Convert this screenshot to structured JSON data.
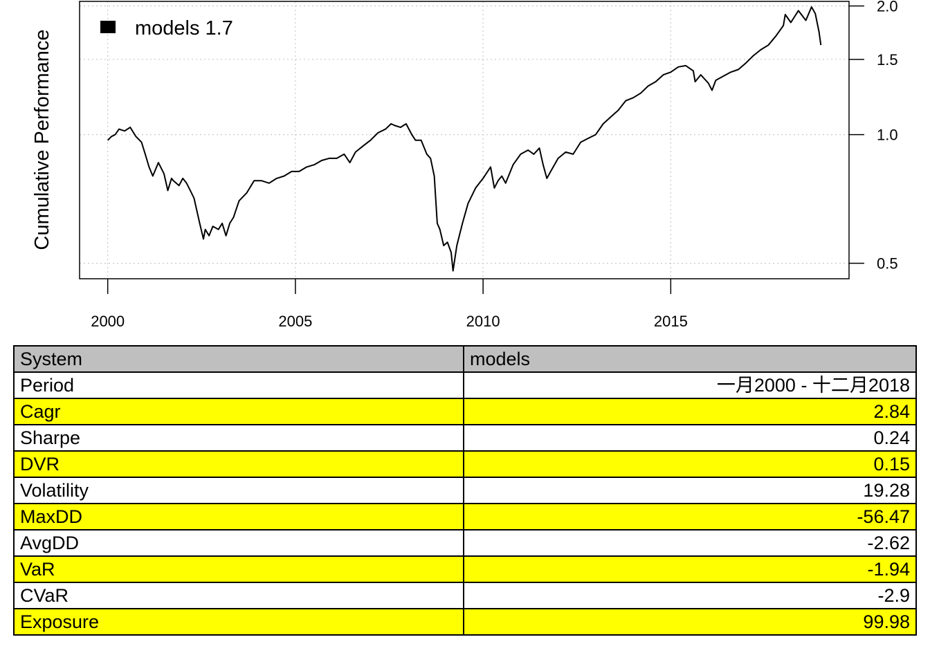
{
  "chart_data": {
    "type": "line",
    "title": "",
    "xlabel": "",
    "ylabel": "Cumulative Performance",
    "y_scale": "log",
    "y_axis_side": "right",
    "xlim": [
      1999.25,
      2019.75
    ],
    "ylim": [
      0.46,
      2.05
    ],
    "x_ticks": [
      2000,
      2005,
      2010,
      2015
    ],
    "x_tick_labels": [
      "2000",
      "2005",
      "2010",
      "2015"
    ],
    "y_ticks": [
      0.5,
      1.0,
      1.5,
      2.0
    ],
    "y_tick_labels": [
      "0.5",
      "1.0",
      "1.5",
      "2.0"
    ],
    "grid": true,
    "legend_position": "top-left",
    "series": [
      {
        "name": "models 1.7",
        "color": "#000000",
        "x": [
          2000.0,
          2000.1,
          2000.2,
          2000.3,
          2000.45,
          2000.6,
          2000.75,
          2000.9,
          2001.0,
          2001.1,
          2001.2,
          2001.35,
          2001.5,
          2001.6,
          2001.7,
          2001.75,
          2001.9,
          2002.0,
          2002.1,
          2002.2,
          2002.3,
          2002.45,
          2002.55,
          2002.6,
          2002.7,
          2002.8,
          2002.95,
          2003.05,
          2003.15,
          2003.25,
          2003.35,
          2003.5,
          2003.7,
          2003.9,
          2004.1,
          2004.3,
          2004.5,
          2004.7,
          2004.9,
          2005.1,
          2005.3,
          2005.5,
          2005.7,
          2005.9,
          2006.1,
          2006.3,
          2006.45,
          2006.6,
          2006.8,
          2007.0,
          2007.2,
          2007.4,
          2007.55,
          2007.65,
          2007.8,
          2007.95,
          2008.1,
          2008.2,
          2008.35,
          2008.5,
          2008.6,
          2008.7,
          2008.78,
          2008.85,
          2008.95,
          2009.05,
          2009.15,
          2009.2,
          2009.3,
          2009.45,
          2009.6,
          2009.8,
          2010.0,
          2010.2,
          2010.3,
          2010.4,
          2010.5,
          2010.6,
          2010.8,
          2011.0,
          2011.2,
          2011.35,
          2011.5,
          2011.6,
          2011.7,
          2011.8,
          2012.0,
          2012.2,
          2012.4,
          2012.6,
          2012.8,
          2013.0,
          2013.2,
          2013.4,
          2013.6,
          2013.8,
          2014.0,
          2014.2,
          2014.4,
          2014.6,
          2014.8,
          2015.0,
          2015.2,
          2015.4,
          2015.6,
          2015.65,
          2015.8,
          2016.0,
          2016.1,
          2016.2,
          2016.4,
          2016.6,
          2016.8,
          2017.0,
          2017.2,
          2017.4,
          2017.6,
          2017.8,
          2018.0,
          2018.05,
          2018.2,
          2018.4,
          2018.6,
          2018.75,
          2018.85,
          2018.95,
          2019.0
        ],
        "values": [
          0.97,
          0.99,
          1.0,
          1.03,
          1.02,
          1.04,
          0.99,
          0.96,
          0.9,
          0.84,
          0.8,
          0.86,
          0.81,
          0.74,
          0.79,
          0.78,
          0.76,
          0.79,
          0.77,
          0.74,
          0.71,
          0.62,
          0.57,
          0.6,
          0.58,
          0.61,
          0.6,
          0.62,
          0.58,
          0.62,
          0.64,
          0.7,
          0.73,
          0.78,
          0.78,
          0.77,
          0.79,
          0.8,
          0.82,
          0.82,
          0.84,
          0.85,
          0.87,
          0.88,
          0.88,
          0.9,
          0.86,
          0.91,
          0.94,
          0.97,
          1.01,
          1.03,
          1.06,
          1.05,
          1.04,
          1.06,
          1.0,
          0.97,
          0.97,
          0.9,
          0.88,
          0.8,
          0.62,
          0.6,
          0.55,
          0.56,
          0.53,
          0.48,
          0.55,
          0.62,
          0.69,
          0.75,
          0.79,
          0.84,
          0.75,
          0.78,
          0.8,
          0.77,
          0.85,
          0.9,
          0.92,
          0.9,
          0.93,
          0.85,
          0.79,
          0.82,
          0.88,
          0.91,
          0.9,
          0.96,
          0.98,
          1.0,
          1.06,
          1.1,
          1.14,
          1.2,
          1.22,
          1.25,
          1.3,
          1.33,
          1.38,
          1.4,
          1.44,
          1.45,
          1.41,
          1.33,
          1.38,
          1.32,
          1.27,
          1.34,
          1.37,
          1.4,
          1.42,
          1.47,
          1.53,
          1.58,
          1.62,
          1.7,
          1.8,
          1.91,
          1.83,
          1.95,
          1.85,
          1.99,
          1.92,
          1.74,
          1.62
        ]
      }
    ],
    "table": {
      "header": [
        "System",
        "models"
      ],
      "rows": [
        {
          "label": "Period",
          "value": "一月2000 - 十二月2018",
          "highlight": false
        },
        {
          "label": "Cagr",
          "value": "2.84",
          "highlight": true
        },
        {
          "label": "Sharpe",
          "value": "0.24",
          "highlight": false
        },
        {
          "label": "DVR",
          "value": "0.15",
          "highlight": true
        },
        {
          "label": "Volatility",
          "value": "19.28",
          "highlight": false
        },
        {
          "label": "MaxDD",
          "value": "-56.47",
          "highlight": true
        },
        {
          "label": "AvgDD",
          "value": "-2.62",
          "highlight": false
        },
        {
          "label": "VaR",
          "value": "-1.94",
          "highlight": true
        },
        {
          "label": "CVaR",
          "value": "-2.9",
          "highlight": false
        },
        {
          "label": "Exposure",
          "value": "99.98",
          "highlight": true
        }
      ],
      "highlight_color": "#ffff00",
      "header_color": "#bfbfbf"
    }
  }
}
